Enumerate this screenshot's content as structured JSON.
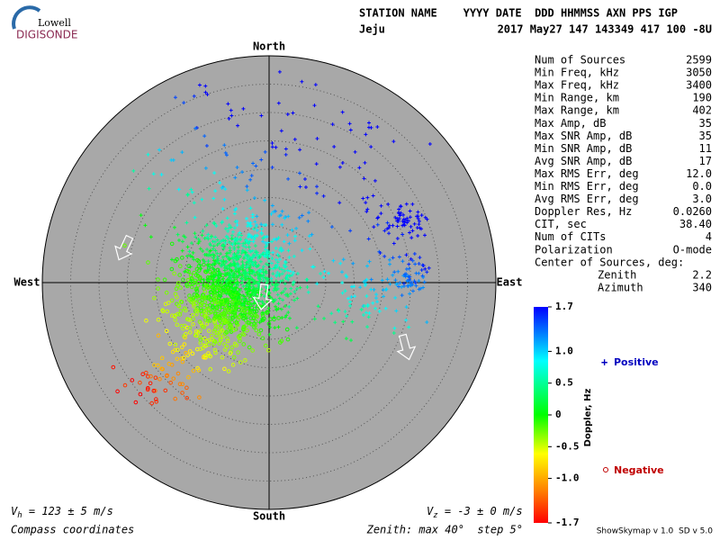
{
  "logo": {
    "top": "Lowell",
    "name": "DIGISONDE"
  },
  "header": {
    "fields": "STATION NAME    YYYY DATE  DDD HHMMSS AXN PPS IGP",
    "station": "Jeju",
    "values": "2017 May27 147 143349 417 100 -8U"
  },
  "compass": {
    "north": "North",
    "south": "South",
    "west": "West",
    "east": "East"
  },
  "stats": [
    [
      "Num of Sources",
      "2599"
    ],
    [
      "Min Freq, kHz",
      "3050"
    ],
    [
      "Max Freq, kHz",
      "3400"
    ],
    [
      "Min Range, km",
      "190"
    ],
    [
      "Max Range, km",
      "402"
    ],
    [
      "Max Amp, dB",
      "35"
    ],
    [
      "Max SNR Amp, dB",
      "35"
    ],
    [
      "Min SNR Amp, dB",
      "11"
    ],
    [
      "Avg SNR Amp, dB",
      "17"
    ],
    [
      "Max RMS Err, deg",
      "12.0"
    ],
    [
      "Min RMS Err, deg",
      "0.0"
    ],
    [
      "Avg RMS Err, deg",
      "3.0"
    ],
    [
      "Doppler Res, Hz",
      "0.0260"
    ],
    [
      "CIT, sec",
      "38.40"
    ],
    [
      "Num of CITs",
      "4"
    ],
    [
      "Polarization",
      "O-mode"
    ],
    [
      "Center of Sources, deg:"
    ],
    [
      "Zenith",
      "2.2"
    ],
    [
      "Azimuth",
      "340"
    ]
  ],
  "colorbar": {
    "label": "Doppler, Hz",
    "lim": [
      -1.7,
      1.7
    ],
    "ticks": [
      1.7,
      {
        "value": 1,
        "label": "1.0"
      },
      0.5,
      0,
      -0.5,
      {
        "value": -1,
        "label": "-1.0"
      },
      -1.7
    ]
  },
  "legend": {
    "positive": "Positive",
    "negative": "Negative"
  },
  "footer": {
    "vh_symbol": "V",
    "vh_sub": "h",
    "vh_text": " = 123 ± 5 m/s",
    "vz_symbol": "V",
    "vz_sub": "z",
    "vz_text": " = -3 ± 0 m/s",
    "coords": "Compass coordinates",
    "zenith": "Zenith: max 40°  step 5°",
    "version": "ShowSkymap v 1.0  SD v 5.0"
  }
}
